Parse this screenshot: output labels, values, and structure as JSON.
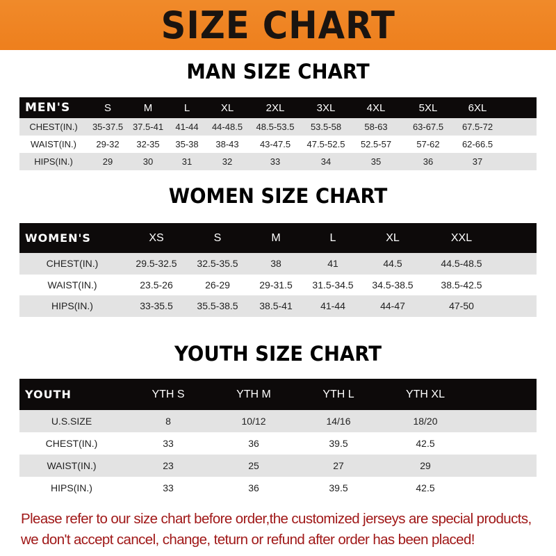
{
  "banner_title": "SIZE CHART",
  "men": {
    "title": "MAN SIZE CHART",
    "header": [
      "MEN'S",
      "S",
      "M",
      "L",
      "XL",
      "2XL",
      "3XL",
      "4XL",
      "5XL",
      "6XL"
    ],
    "rows": [
      [
        "CHEST(IN.)",
        "35-37.5",
        "37.5-41",
        "41-44",
        "44-48.5",
        "48.5-53.5",
        "53.5-58",
        "58-63",
        "63-67.5",
        "67.5-72"
      ],
      [
        "WAIST(IN.)",
        "29-32",
        "32-35",
        "35-38",
        "38-43",
        "43-47.5",
        "47.5-52.5",
        "52.5-57",
        "57-62",
        "62-66.5"
      ],
      [
        "HIPS(IN.)",
        "29",
        "30",
        "31",
        "32",
        "33",
        "34",
        "35",
        "36",
        "37"
      ]
    ]
  },
  "women": {
    "title": "WOMEN SIZE CHART",
    "header": [
      "WOMEN'S",
      "XS",
      "S",
      "M",
      "L",
      "XL",
      "XXL"
    ],
    "rows": [
      [
        "CHEST(IN.)",
        "29.5-32.5",
        "32.5-35.5",
        "38",
        "41",
        "44.5",
        "44.5-48.5"
      ],
      [
        "WAIST(IN.)",
        "23.5-26",
        "26-29",
        "29-31.5",
        "31.5-34.5",
        "34.5-38.5",
        "38.5-42.5"
      ],
      [
        "HIPS(IN.)",
        "33-35.5",
        "35.5-38.5",
        "38.5-41",
        "41-44",
        "44-47",
        "47-50"
      ]
    ]
  },
  "youth": {
    "title": "YOUTH SIZE CHART",
    "header": [
      "YOUTH",
      "YTH S",
      "YTH M",
      "YTH L",
      "YTH XL"
    ],
    "rows": [
      [
        "U.S.SIZE",
        "8",
        "10/12",
        "14/16",
        "18/20"
      ],
      [
        "CHEST(IN.)",
        "33",
        "36",
        "39.5",
        "42.5"
      ],
      [
        "WAIST(IN.)",
        "23",
        "25",
        "27",
        "29"
      ],
      [
        "HIPS(IN.)",
        "33",
        "36",
        "39.5",
        "42.5"
      ]
    ]
  },
  "notice": [
    "Please refer to our size chart before order,the customized jerseys are special products,",
    "we don't accept cancel, change, teturn or refund after order has been placed!"
  ],
  "colors": {
    "banner": "#ee7f1d",
    "header_row": "#0d0a0a",
    "stripe": "#e3e3e3",
    "notice": "#a01818"
  }
}
